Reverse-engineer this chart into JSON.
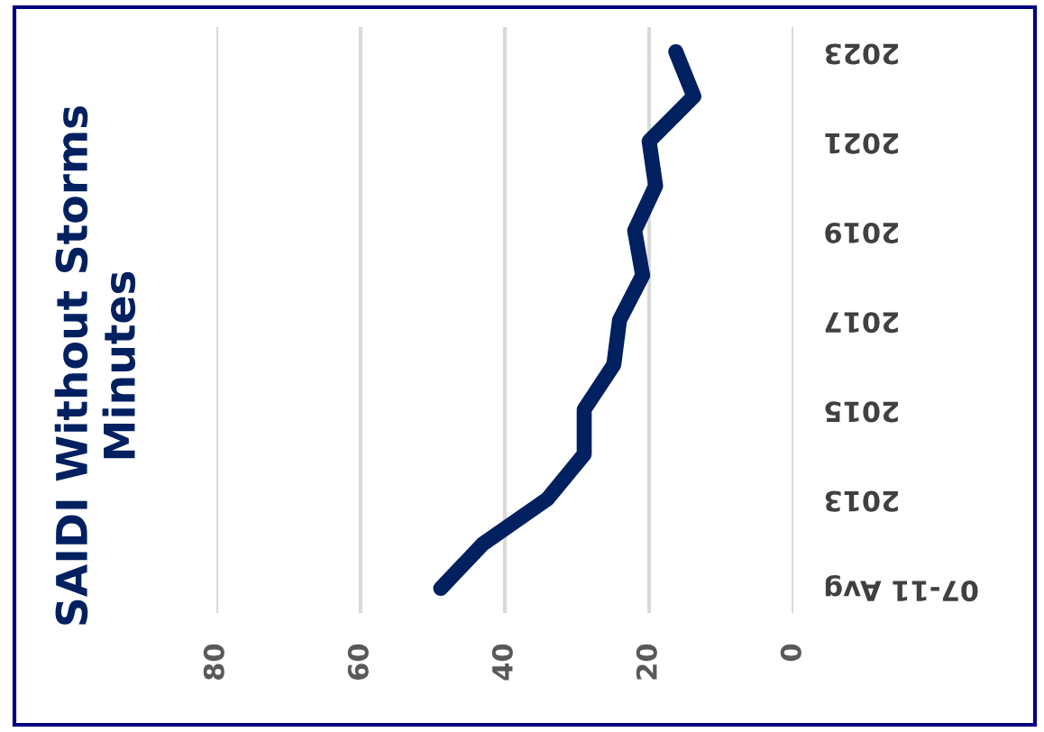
{
  "chart_data": {
    "type": "line",
    "orientation": "horizontal",
    "title": "SAIDI Without Storms\nMinutes",
    "categories": [
      "2023",
      null,
      "2021",
      null,
      "2019",
      null,
      "2017",
      null,
      "2015",
      null,
      "2013",
      null,
      "07-11 Avg"
    ],
    "series": [
      {
        "color": "#002060",
        "values": [
          16.3,
          13.8,
          20,
          19.1,
          22,
          20.9,
          24.1,
          24.9,
          29,
          29,
          34.1,
          43,
          48.9
        ]
      }
    ],
    "xlim": [
      80,
      0
    ],
    "xticks": [
      0,
      20,
      40,
      60,
      80
    ],
    "grid": "x",
    "legend": false,
    "marker": "none",
    "line_style": "solid"
  }
}
